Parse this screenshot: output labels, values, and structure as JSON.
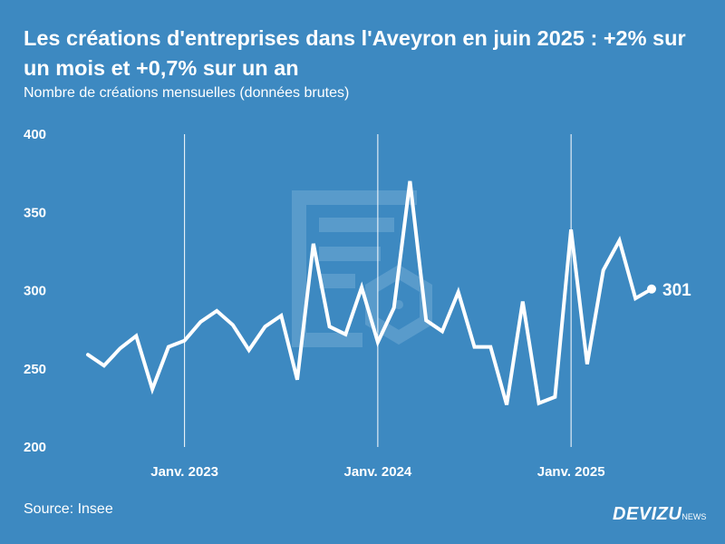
{
  "header": {
    "title": "Les créations d'entreprises dans l'Aveyron en juin 2025 : +2% sur un mois et +0,7% sur un an",
    "subtitle": "Nombre de créations mensuelles (données brutes)"
  },
  "footer": {
    "source": "Source: Insee",
    "brand": "DEVIZU",
    "brand_suffix": "NEWS"
  },
  "colors": {
    "background": "#3d89c1",
    "line": "#ffffff",
    "watermark": "#6aa7d4"
  },
  "chart_data": {
    "type": "line",
    "x_start": "2022-07",
    "x_end": "2025-06",
    "x": [
      "2022-07",
      "2022-08",
      "2022-09",
      "2022-10",
      "2022-11",
      "2022-12",
      "2023-01",
      "2023-02",
      "2023-03",
      "2023-04",
      "2023-05",
      "2023-06",
      "2023-07",
      "2023-08",
      "2023-09",
      "2023-10",
      "2023-11",
      "2023-12",
      "2024-01",
      "2024-02",
      "2024-03",
      "2024-04",
      "2024-05",
      "2024-06",
      "2024-07",
      "2024-08",
      "2024-09",
      "2024-10",
      "2024-11",
      "2024-12",
      "2025-01",
      "2025-02",
      "2025-03",
      "2025-04",
      "2025-05",
      "2025-06"
    ],
    "series": [
      {
        "values": [
          259,
          252,
          263,
          271,
          237,
          264,
          268,
          280,
          287,
          278,
          262,
          277,
          284,
          243,
          330,
          277,
          272,
          302,
          267,
          289,
          370,
          281,
          274,
          299,
          264,
          264,
          227,
          293,
          228,
          232,
          339,
          253,
          313,
          332,
          295,
          301
        ]
      }
    ],
    "last_label": "301",
    "ylim": [
      200,
      400
    ],
    "yticks": [
      "200",
      "250",
      "300",
      "350",
      "400"
    ],
    "ytick_values": [
      200,
      250,
      300,
      350,
      400
    ],
    "xticks": [
      {
        "date": "2023-01",
        "label": "Janv. 2023"
      },
      {
        "date": "2024-01",
        "label": "Janv. 2024"
      },
      {
        "date": "2025-01",
        "label": "Janv. 2025"
      }
    ],
    "grid": "vertical lines at January",
    "legend": "none"
  }
}
